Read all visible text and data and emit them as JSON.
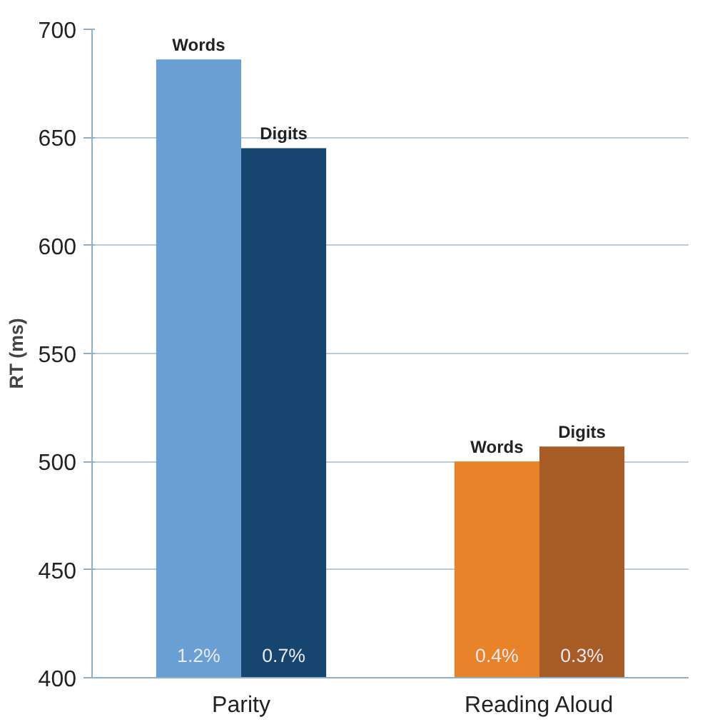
{
  "chart_data": {
    "type": "bar",
    "ylabel": "RT (ms)",
    "categories": [
      "Parity",
      "Reading Aloud"
    ],
    "series": [
      {
        "name": "Words",
        "colors": [
          "#6a9fd4",
          "#e8832a"
        ],
        "values": [
          686,
          500
        ]
      },
      {
        "name": "Digits",
        "colors": [
          "#16466f",
          "#a85c25"
        ],
        "values": [
          645,
          507
        ]
      }
    ],
    "annotations": [
      "1.2%",
      "0.4%",
      "0.7%",
      "0.3%"
    ],
    "ylim": [
      400,
      700
    ],
    "yticks": [
      400,
      450,
      500,
      550,
      600,
      650,
      700
    ],
    "grid": "y"
  }
}
